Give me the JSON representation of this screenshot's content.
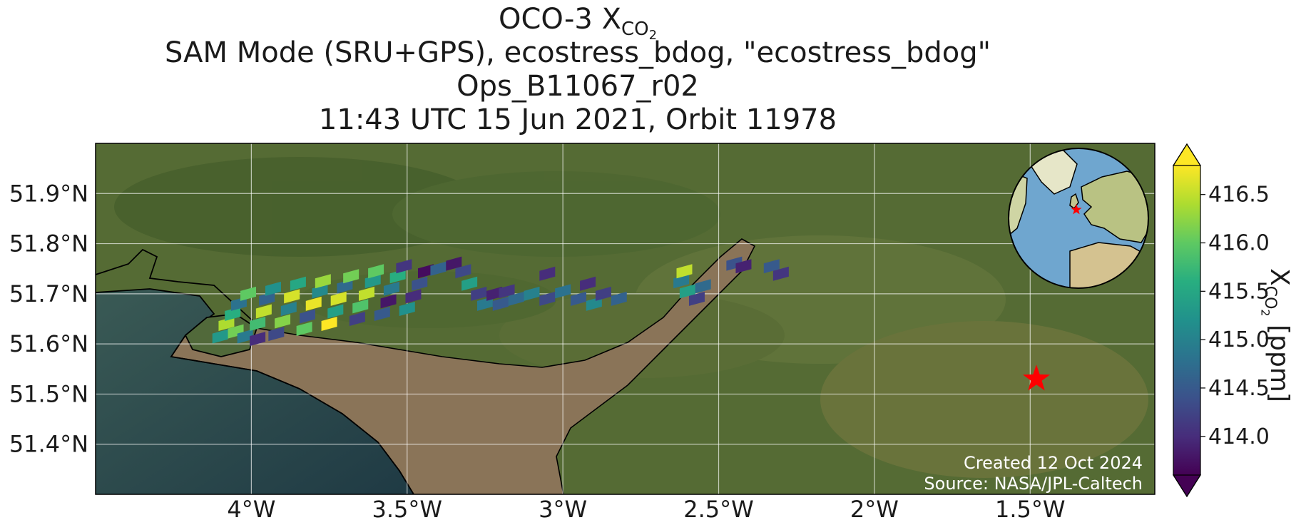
{
  "title": {
    "line1_main": "OCO-3 X",
    "line1_sub": "CO",
    "line1_subsub": "2",
    "line2": "SAM Mode (SRU+GPS), ecostress_bdog, \"ecostress_bdog\"",
    "line3": "Ops_B11067_r02",
    "line4": "11:43 UTC 15 Jun 2021, Orbit 11978"
  },
  "map": {
    "lon_range": [
      -4.5,
      -1.1
    ],
    "lat_range": [
      51.3,
      52.0
    ],
    "x_ticks": [
      {
        "value": -4.0,
        "label": "4°W"
      },
      {
        "value": -3.5,
        "label": "3.5°W"
      },
      {
        "value": -3.0,
        "label": "3°W"
      },
      {
        "value": -2.5,
        "label": "2.5°W"
      },
      {
        "value": -2.0,
        "label": "2°W"
      },
      {
        "value": -1.5,
        "label": "1.5°W"
      }
    ],
    "y_ticks": [
      {
        "value": 51.9,
        "label": "51.9°N"
      },
      {
        "value": 51.8,
        "label": "51.8°N"
      },
      {
        "value": 51.7,
        "label": "51.7°N"
      },
      {
        "value": 51.6,
        "label": "51.6°N"
      },
      {
        "value": 51.5,
        "label": "51.5°N"
      },
      {
        "value": 51.4,
        "label": "51.4°N"
      }
    ],
    "grid": true,
    "target_marker": {
      "lon": -1.48,
      "lat": 51.53,
      "symbol": "star",
      "color": "#ff0000"
    },
    "basemap": "satellite imagery",
    "colors": {
      "land": "#556b34",
      "sea": "#2a4a4c",
      "estuary": "#8a7458",
      "coast": "#000000"
    }
  },
  "colorbar": {
    "min": 413.6,
    "max": 416.8,
    "ticks": [
      {
        "value": 414.0,
        "label": "414.0"
      },
      {
        "value": 414.5,
        "label": "414.5"
      },
      {
        "value": 415.0,
        "label": "415.0"
      },
      {
        "value": 415.5,
        "label": "415.5"
      },
      {
        "value": 416.0,
        "label": "416.0"
      },
      {
        "value": 416.5,
        "label": "416.5"
      }
    ],
    "label_main": "X",
    "label_sub": "CO",
    "label_subsub": "2",
    "label_unit": " [ppm]",
    "colormap": "viridis",
    "extend": "both",
    "under_color": "#440154",
    "over_color": "#fde725"
  },
  "inset_globe": {
    "highlight_lon": -2.5,
    "highlight_lat": 51.7,
    "marker_color": "#ff0000"
  },
  "credits": {
    "created": "Created 12 Oct 2024",
    "source": "Source: NASA/JPL-Caltech"
  },
  "soundings": [
    [
      -4.1,
      51.615,
      415.3
    ],
    [
      -4.05,
      51.625,
      416.1
    ],
    [
      -4.02,
      51.615,
      414.9
    ],
    [
      -3.98,
      51.61,
      414.0
    ],
    [
      -4.08,
      51.64,
      416.4
    ],
    [
      -4.06,
      51.66,
      415.6
    ],
    [
      -4.04,
      51.68,
      414.8
    ],
    [
      -4.01,
      51.7,
      416.0
    ],
    [
      -3.98,
      51.64,
      415.8
    ],
    [
      -3.96,
      51.665,
      416.5
    ],
    [
      -3.95,
      51.69,
      414.6
    ],
    [
      -3.93,
      51.71,
      415.2
    ],
    [
      -3.92,
      51.62,
      414.3
    ],
    [
      -3.9,
      51.645,
      416.2
    ],
    [
      -3.88,
      51.67,
      415.0
    ],
    [
      -3.87,
      51.695,
      416.6
    ],
    [
      -3.85,
      51.72,
      415.5
    ],
    [
      -3.83,
      51.63,
      416.0
    ],
    [
      -3.82,
      51.655,
      414.4
    ],
    [
      -3.8,
      51.68,
      416.7
    ],
    [
      -3.78,
      51.705,
      415.1
    ],
    [
      -3.77,
      51.725,
      416.3
    ],
    [
      -3.75,
      51.64,
      416.8
    ],
    [
      -3.73,
      51.665,
      415.4
    ],
    [
      -3.72,
      51.69,
      416.6
    ],
    [
      -3.7,
      51.715,
      414.7
    ],
    [
      -3.68,
      51.735,
      416.1
    ],
    [
      -3.66,
      51.65,
      414.2
    ],
    [
      -3.65,
      51.675,
      415.9
    ],
    [
      -3.63,
      51.7,
      416.5
    ],
    [
      -3.61,
      51.725,
      415.3
    ],
    [
      -3.6,
      51.745,
      416.0
    ],
    [
      -3.58,
      51.66,
      414.5
    ],
    [
      -3.56,
      51.685,
      413.8
    ],
    [
      -3.55,
      51.71,
      414.9
    ],
    [
      -3.53,
      51.735,
      415.6
    ],
    [
      -3.51,
      51.755,
      414.1
    ],
    [
      -3.5,
      51.67,
      415.2
    ],
    [
      -3.48,
      51.695,
      414.0
    ],
    [
      -3.46,
      51.72,
      414.4
    ],
    [
      -3.44,
      51.745,
      413.7
    ],
    [
      -3.4,
      51.75,
      414.6
    ],
    [
      -3.35,
      51.76,
      413.8
    ],
    [
      -3.32,
      51.745,
      414.3
    ],
    [
      -3.3,
      51.72,
      415.4
    ],
    [
      -3.27,
      51.7,
      414.2
    ],
    [
      -3.25,
      51.68,
      414.9
    ],
    [
      -3.22,
      51.7,
      413.9
    ],
    [
      -3.2,
      51.68,
      414.5
    ],
    [
      -3.18,
      51.705,
      414.1
    ],
    [
      -3.15,
      51.69,
      414.7
    ],
    [
      -3.1,
      51.7,
      415.0
    ],
    [
      -3.05,
      51.69,
      414.3
    ],
    [
      -3.0,
      51.705,
      414.8
    ],
    [
      -2.95,
      51.69,
      414.5
    ],
    [
      -2.92,
      51.72,
      414.0
    ],
    [
      -2.9,
      51.68,
      415.1
    ],
    [
      -2.87,
      51.7,
      414.2
    ],
    [
      -2.82,
      51.69,
      414.6
    ],
    [
      -3.05,
      51.74,
      414.0
    ],
    [
      -2.62,
      51.725,
      414.9
    ],
    [
      -2.61,
      51.745,
      416.5
    ],
    [
      -2.6,
      51.705,
      415.4
    ],
    [
      -2.57,
      51.69,
      414.2
    ],
    [
      -2.55,
      51.715,
      414.7
    ],
    [
      -2.45,
      51.76,
      414.4
    ],
    [
      -2.42,
      51.755,
      413.9
    ],
    [
      -2.33,
      51.755,
      414.5
    ],
    [
      -2.3,
      51.74,
      414.1
    ]
  ]
}
